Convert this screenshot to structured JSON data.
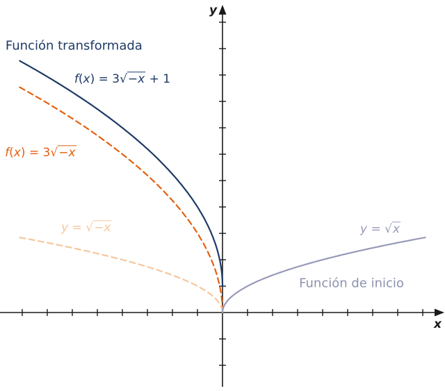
{
  "chart_data": {
    "type": "line",
    "title": "",
    "xlabel": "x",
    "ylabel": "y",
    "x_range": [
      -8.9,
      8.9
    ],
    "y_range": [
      -3.0,
      11.7
    ],
    "x_ticks": [
      -8,
      -7,
      -6,
      -5,
      -4,
      -3,
      -2,
      -1,
      1,
      2,
      3,
      4,
      5,
      6,
      7,
      8
    ],
    "y_ticks": [
      -2,
      -1,
      1,
      2,
      3,
      4,
      5,
      6,
      7,
      8,
      9,
      10,
      11
    ],
    "grid": false,
    "legend_position": "none",
    "axis_color": "#1a1a1a",
    "series": [
      {
        "id": "curve-transformed-plus1",
        "label": "f(x) = 3√(−x) + 1",
        "formula": "y = 3*sqrt(-x) + 1",
        "coef": 3,
        "offset": 1,
        "reflect": true,
        "domain": [
          -8.1,
          0
        ],
        "color": "#1e3a67",
        "dashed": false,
        "width": 2.2,
        "key_points": [
          [
            -8,
            9.49
          ],
          [
            -4,
            7.0
          ],
          [
            -1,
            4.0
          ],
          [
            0,
            1.0
          ]
        ]
      },
      {
        "id": "curve-3sqrt-negx",
        "label": "f(x) = 3√(−x)",
        "formula": "y = 3*sqrt(-x)",
        "coef": 3,
        "offset": 0,
        "reflect": true,
        "domain": [
          -8.1,
          0
        ],
        "color": "#e2610f",
        "dashed": true,
        "width": 2.2,
        "key_points": [
          [
            -8,
            8.49
          ],
          [
            -4,
            6.0
          ],
          [
            -1,
            3.0
          ],
          [
            0,
            0.0
          ]
        ]
      },
      {
        "id": "curve-sqrt-negx",
        "label": "y = √(−x)",
        "formula": "y = sqrt(-x)",
        "coef": 1,
        "offset": 0,
        "reflect": true,
        "domain": [
          -8.1,
          0
        ],
        "color": "#f6c69c",
        "dashed": true,
        "width": 2.2,
        "key_points": [
          [
            -8,
            2.83
          ],
          [
            -4,
            2.0
          ],
          [
            -1,
            1.0
          ],
          [
            0,
            0.0
          ]
        ]
      },
      {
        "id": "curve-sqrt-x",
        "label": "y = √(x)",
        "formula": "y = sqrt(x)",
        "coef": 1,
        "offset": 0,
        "reflect": false,
        "domain": [
          0,
          8.1
        ],
        "color": "#9799b9",
        "dashed": false,
        "width": 2.2,
        "key_points": [
          [
            0,
            0.0
          ],
          [
            1,
            1.0
          ],
          [
            4,
            2.0
          ],
          [
            8,
            2.83
          ]
        ]
      }
    ],
    "annotations": [
      {
        "id": "label-funcion-transformada",
        "text": "Función transformada",
        "color": "#1e3a67",
        "x": -8.67,
        "y": 10.05,
        "size": 18,
        "math": false
      },
      {
        "id": "label-formula-transformada",
        "text": "f(x) = 3√(−x) + 1",
        "color": "#1e3a67",
        "x": -5.92,
        "y": 8.8,
        "size": 17,
        "math": true
      },
      {
        "id": "label-formula-3sqrt",
        "text": "f(x) = 3√(−x)",
        "color": "#e2610f",
        "x": -8.69,
        "y": 6.0,
        "size": 17,
        "math": true
      },
      {
        "id": "label-formula-sqrt-negx",
        "text": "y = √(−x)",
        "color": "#f6c69c",
        "x": -6.44,
        "y": 3.16,
        "size": 17,
        "math": true
      },
      {
        "id": "label-formula-sqrt-x",
        "text": "y = √(x)",
        "color": "#9799b9",
        "x": 5.5,
        "y": 3.1,
        "size": 17,
        "math": true
      },
      {
        "id": "label-funcion-de-inicio",
        "text": "Función de inicio",
        "color": "#8d92ad",
        "x": 3.06,
        "y": 1.05,
        "size": 18,
        "math": false
      }
    ]
  }
}
